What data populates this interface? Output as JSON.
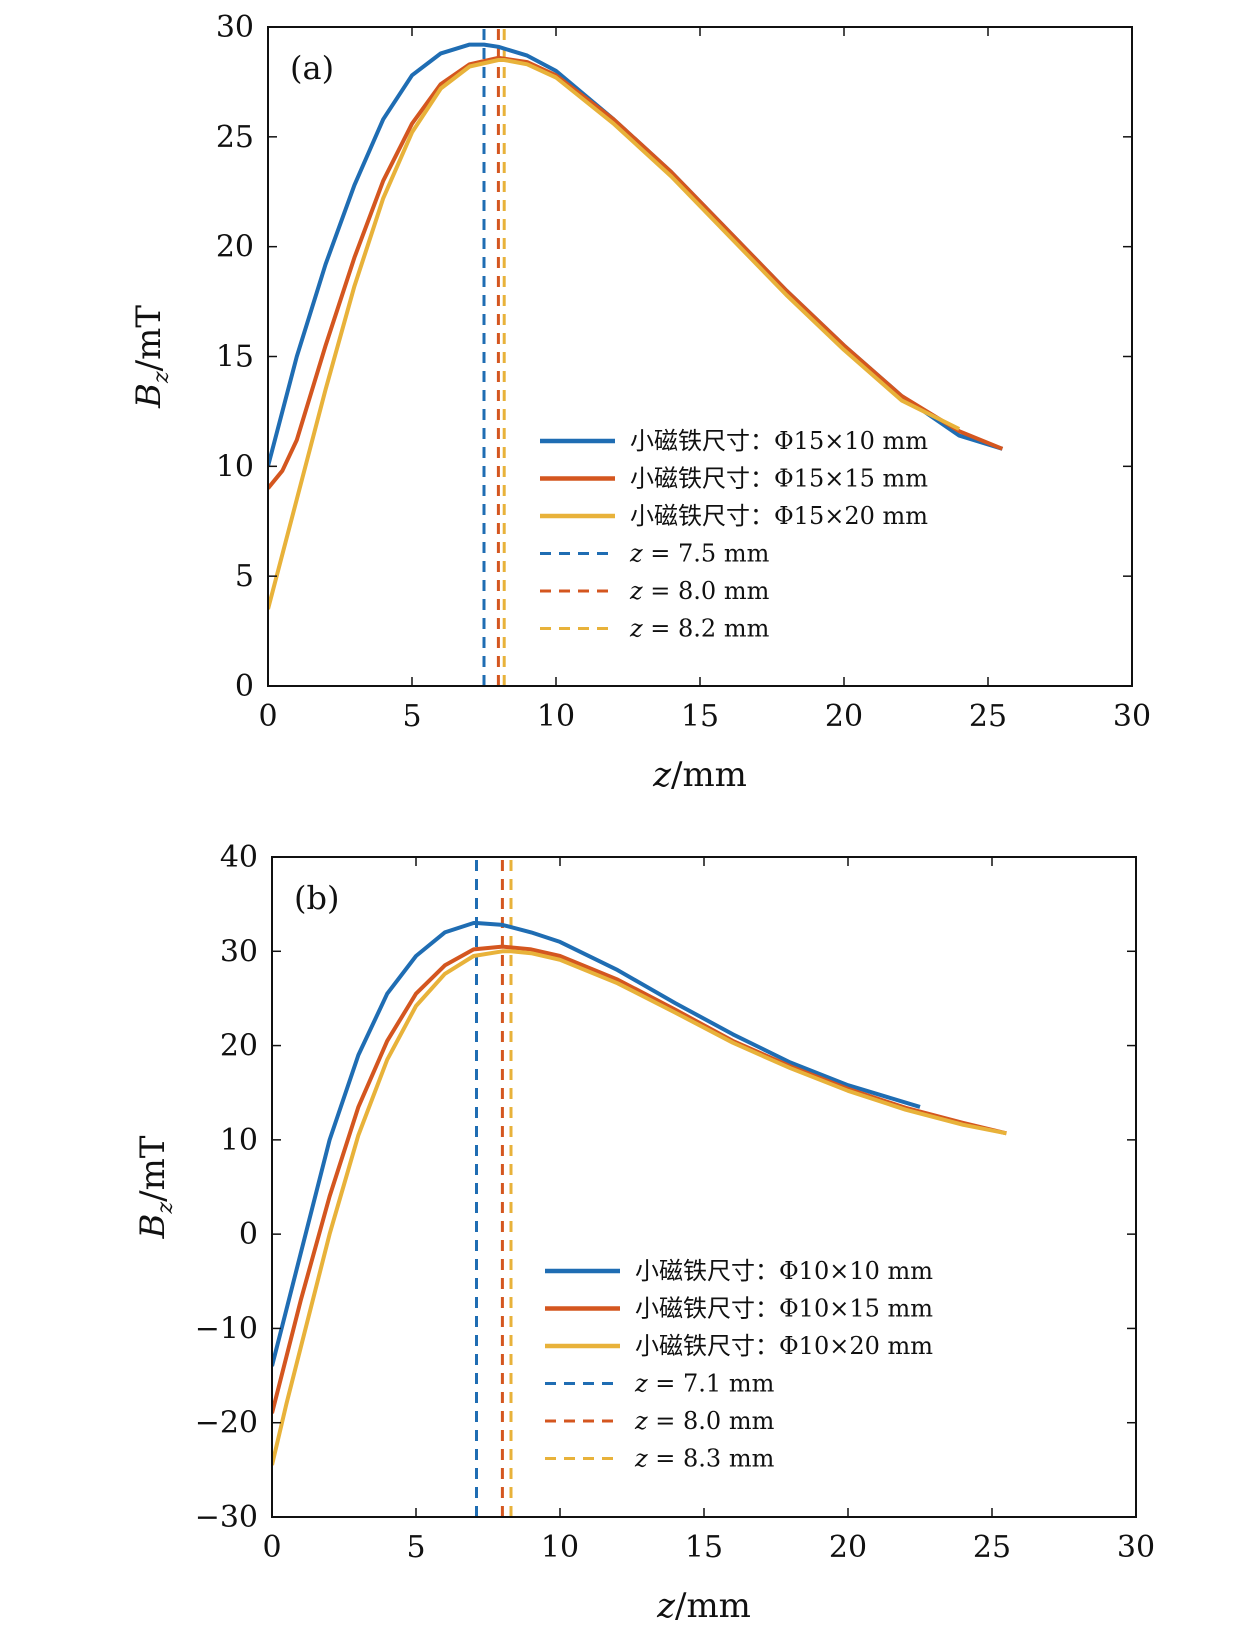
{
  "chart_data": [
    {
      "type": "line",
      "panel_label": "(a)",
      "xlabel": "z/mm",
      "ylabel": "B_z/mT",
      "xlim": [
        0,
        30
      ],
      "ylim": [
        0,
        30
      ],
      "xticks": [
        "0",
        "5",
        "10",
        "15",
        "20",
        "25",
        "30"
      ],
      "yticks": [
        "0",
        "5",
        "10",
        "15",
        "20",
        "25",
        "30"
      ],
      "legend_position": "lower-right",
      "series": [
        {
          "name": "小磁铁尺寸：Φ15×10 mm",
          "color": "#1f6db3",
          "style": "solid",
          "x": [
            0,
            0.5,
            1,
            2,
            3,
            4,
            5,
            6,
            7,
            7.5,
            8,
            9,
            10,
            12,
            14,
            16,
            18,
            20,
            22,
            24,
            25.5
          ],
          "y": [
            10,
            12.5,
            15,
            19.2,
            22.8,
            25.8,
            27.8,
            28.8,
            29.2,
            29.2,
            29.1,
            28.7,
            28,
            25.8,
            23.4,
            20.7,
            18.0,
            15.5,
            13.2,
            11.4,
            10.8
          ]
        },
        {
          "name": "小磁铁尺寸：Φ15×15 mm",
          "color": "#d4561f",
          "style": "solid",
          "x": [
            0,
            0.5,
            1,
            2,
            3,
            4,
            5,
            6,
            7,
            8,
            9,
            10,
            12,
            14,
            16,
            18,
            20,
            22,
            24,
            25.5
          ],
          "y": [
            9,
            9.8,
            11.2,
            15.5,
            19.5,
            23.0,
            25.6,
            27.4,
            28.3,
            28.6,
            28.4,
            27.8,
            25.8,
            23.4,
            20.7,
            18.0,
            15.5,
            13.2,
            11.6,
            10.8
          ]
        },
        {
          "name": "小磁铁尺寸：Φ15×20 mm",
          "color": "#e8b23a",
          "style": "solid",
          "x": [
            0,
            1,
            2,
            3,
            4,
            5,
            6,
            7,
            8,
            8.2,
            9,
            10,
            12,
            14,
            16,
            18,
            20,
            22,
            24
          ],
          "y": [
            3.5,
            8.5,
            13.5,
            18.2,
            22.2,
            25.2,
            27.2,
            28.2,
            28.5,
            28.5,
            28.3,
            27.7,
            25.6,
            23.2,
            20.5,
            17.8,
            15.3,
            13.0,
            11.7
          ]
        },
        {
          "name": "z = 7.5 mm",
          "color": "#1f6db3",
          "style": "dashed",
          "x": [
            7.5,
            7.5
          ],
          "y": [
            0,
            30
          ]
        },
        {
          "name": "z = 8.0 mm",
          "color": "#d4561f",
          "style": "dashed",
          "x": [
            8.0,
            8.0
          ],
          "y": [
            0,
            30
          ]
        },
        {
          "name": "z = 8.2 mm",
          "color": "#e8b23a",
          "style": "dashed",
          "x": [
            8.2,
            8.2
          ],
          "y": [
            0,
            30
          ]
        }
      ]
    },
    {
      "type": "line",
      "panel_label": "(b)",
      "xlabel": "z/mm",
      "ylabel": "B_z/mT",
      "xlim": [
        0,
        30
      ],
      "ylim": [
        -30,
        40
      ],
      "xticks": [
        "0",
        "5",
        "10",
        "15",
        "20",
        "25",
        "30"
      ],
      "yticks": [
        "−30",
        "−20",
        "−10",
        "0",
        "10",
        "20",
        "30",
        "40"
      ],
      "legend_position": "lower-right",
      "series": [
        {
          "name": "小磁铁尺寸：Φ10×10 mm",
          "color": "#1f6db3",
          "style": "solid",
          "x": [
            0,
            0.5,
            1,
            2,
            3,
            4,
            5,
            6,
            7,
            7.1,
            8,
            9,
            10,
            12,
            14,
            16,
            18,
            20,
            22.5
          ],
          "y": [
            -14,
            -8,
            -2,
            10,
            19,
            25.5,
            29.5,
            32,
            33,
            33,
            32.8,
            32,
            31,
            28,
            24.5,
            21.2,
            18.2,
            15.8,
            13.5
          ]
        },
        {
          "name": "小磁铁尺寸：Φ10×15 mm",
          "color": "#d4561f",
          "style": "solid",
          "x": [
            0,
            0.5,
            1,
            2,
            3,
            4,
            5,
            6,
            7,
            8,
            9,
            10,
            12,
            14,
            16,
            18,
            20,
            22,
            24,
            25.5
          ],
          "y": [
            -19,
            -13,
            -7,
            4,
            13.5,
            20.5,
            25.5,
            28.5,
            30.2,
            30.5,
            30.2,
            29.5,
            27,
            23.8,
            20.5,
            17.8,
            15.4,
            13.4,
            11.8,
            10.7
          ]
        },
        {
          "name": "小磁铁尺寸：Φ10×20 mm",
          "color": "#e8b23a",
          "style": "solid",
          "x": [
            0,
            0.5,
            1,
            2,
            3,
            4,
            5,
            6,
            7,
            8,
            8.3,
            9,
            10,
            12,
            14,
            16,
            18,
            20,
            22,
            24,
            25.5
          ],
          "y": [
            -24.5,
            -18,
            -12,
            0,
            10.5,
            18.5,
            24.2,
            27.6,
            29.5,
            30.0,
            30.0,
            29.8,
            29.1,
            26.6,
            23.5,
            20.3,
            17.6,
            15.2,
            13.2,
            11.6,
            10.7
          ]
        },
        {
          "name": "z = 7.1 mm",
          "color": "#1f6db3",
          "style": "dashed",
          "x": [
            7.1,
            7.1
          ],
          "y": [
            -30,
            40
          ]
        },
        {
          "name": "z = 8.0 mm",
          "color": "#d4561f",
          "style": "dashed",
          "x": [
            8.0,
            8.0
          ],
          "y": [
            -30,
            40
          ]
        },
        {
          "name": "z = 8.3 mm",
          "color": "#e8b23a",
          "style": "dashed",
          "x": [
            8.3,
            8.3
          ],
          "y": [
            -30,
            40
          ]
        }
      ]
    }
  ]
}
